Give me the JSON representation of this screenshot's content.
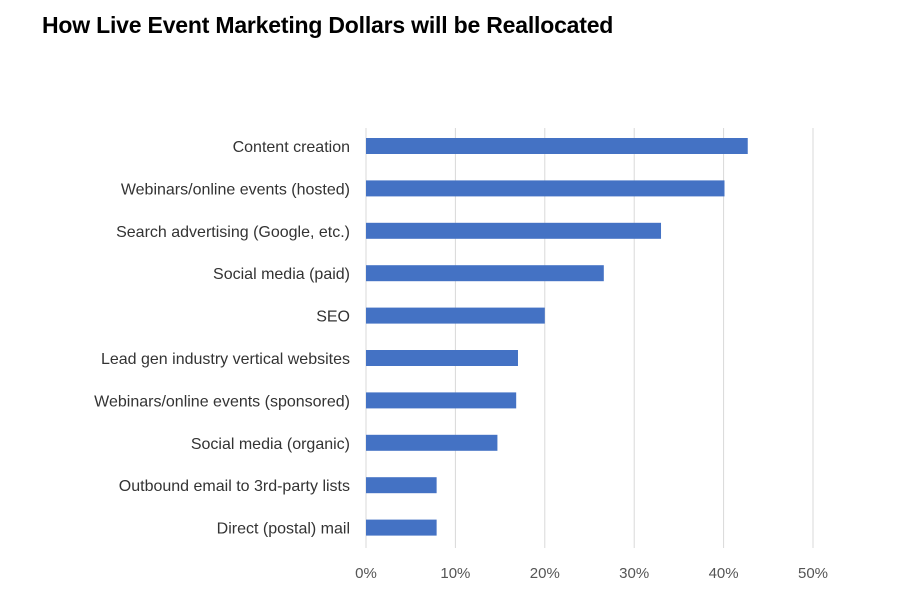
{
  "chart_data": {
    "type": "bar",
    "orientation": "horizontal",
    "title": "How Live Event Marketing Dollars will be Reallocated",
    "xlabel": "",
    "ylabel": "",
    "categories": [
      "Content creation",
      "Webinars/online events (hosted)",
      "Search advertising (Google, etc.)",
      "Social media (paid)",
      "SEO",
      "Lead gen industry vertical websites",
      "Webinars/online events (sponsored)",
      "Social media (organic)",
      "Outbound email to 3rd-party lists",
      "Direct (postal) mail"
    ],
    "values": [
      0.427,
      0.401,
      0.33,
      0.266,
      0.2,
      0.17,
      0.168,
      0.147,
      0.079,
      0.079
    ],
    "xlim": [
      0,
      0.5
    ],
    "ticks": [
      0,
      0.1,
      0.2,
      0.3,
      0.4,
      0.5
    ],
    "tick_labels": [
      "0%",
      "10%",
      "20%",
      "30%",
      "40%",
      "50%"
    ],
    "grid": true,
    "legend": "none",
    "bar_color": "#4472c4",
    "grid_color": "#d9d9d9"
  }
}
